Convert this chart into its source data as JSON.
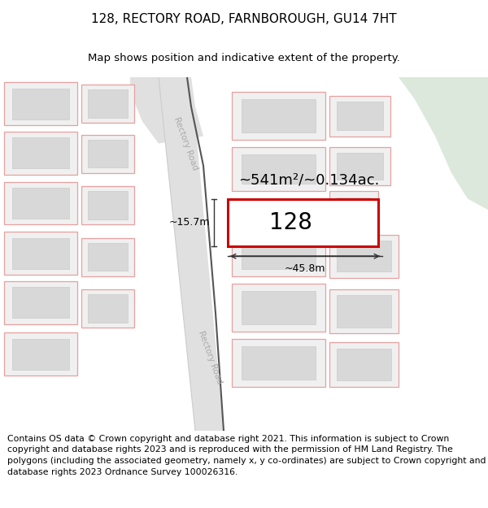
{
  "title": "128, RECTORY ROAD, FARNBOROUGH, GU14 7HT",
  "subtitle": "Map shows position and indicative extent of the property.",
  "footer": "Contains OS data © Crown copyright and database right 2021. This information is subject to Crown copyright and database rights 2023 and is reproduced with the permission of HM Land Registry. The polygons (including the associated geometry, namely x, y co-ordinates) are subject to Crown copyright and database rights 2023 Ordnance Survey 100026316.",
  "map_bg": "#f8f8f8",
  "road_fill": "#e0e0e0",
  "road_edge": "#cccccc",
  "road_dark_edge": "#555555",
  "plot_fill": "#f0f0f0",
  "plot_outline": "#e8a0a0",
  "building_fill": "#d8d8d8",
  "building_outline": "#cccccc",
  "highlight_fill": "#ffffff",
  "highlight_outline": "#cc0000",
  "green_fill": "#dce8dc",
  "road_label_color": "#aaaaaa",
  "dim_arrow_color": "#333333",
  "road_label": "Rectory Road",
  "measure_width": "~45.8m",
  "measure_height": "~15.7m",
  "area_label": "~541m²/~0.134ac.",
  "property_number": "128",
  "title_fontsize": 11,
  "subtitle_fontsize": 9.5,
  "footer_fontsize": 7.8,
  "road_label_fontsize": 7.5,
  "area_fontsize": 13,
  "prop_num_fontsize": 20
}
